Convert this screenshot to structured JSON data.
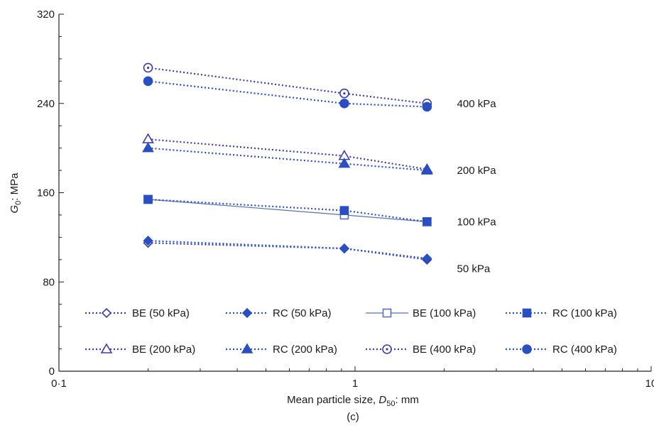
{
  "chart_data": {
    "type": "scatter",
    "xscale": "log",
    "xlim": [
      0.1,
      10
    ],
    "ylim": [
      0,
      320
    ],
    "xticks": [
      0.1,
      1,
      10
    ],
    "xtick_labels": [
      "0·1",
      "1",
      "10"
    ],
    "yticks": [
      0,
      80,
      160,
      240,
      320
    ],
    "ytick_labels": [
      "0",
      "80",
      "160",
      "240",
      "320"
    ],
    "xlabel": "Mean particle size, D50: mm",
    "xlabel_parts": {
      "main": "Mean particle size, ",
      "symbol": "D",
      "sub": "50",
      "unit": ": mm"
    },
    "ylabel_parts": {
      "symbol": "G",
      "sub": "0",
      "unit": ": MPa"
    },
    "panel_label": "(c)",
    "grid": false,
    "legend_position": "bottom",
    "colors": {
      "be": "#3d3da6",
      "rc": "#2a4fc2",
      "be100": "#5a6fb8"
    },
    "annotations": [
      {
        "text": "400 kPa",
        "x": 2.0,
        "y": 240
      },
      {
        "text": "200 kPa",
        "x": 2.0,
        "y": 180
      },
      {
        "text": "100 kPa",
        "x": 2.0,
        "y": 134
      },
      {
        "text": "50 kPa",
        "x": 2.0,
        "y": 92
      }
    ],
    "series": [
      {
        "name": "BE (50 kPa)",
        "marker": "diamond-open",
        "line": "dotted",
        "color": "#3d3da6",
        "x": [
          0.2,
          0.92,
          1.75
        ],
        "y": [
          115,
          110,
          100
        ]
      },
      {
        "name": "RC (50 kPa)",
        "marker": "diamond-filled",
        "line": "dotted",
        "color": "#2a4fc2",
        "x": [
          0.2,
          0.92,
          1.75
        ],
        "y": [
          117,
          110,
          101
        ]
      },
      {
        "name": "BE (100 kPa)",
        "marker": "square-open",
        "line": "solid",
        "color": "#5a6fb8",
        "x": [
          0.2,
          0.92,
          1.75
        ],
        "y": [
          154,
          140,
          134
        ]
      },
      {
        "name": "RC (100 kPa)",
        "marker": "square-filled",
        "line": "dotted",
        "color": "#2a4fc2",
        "x": [
          0.2,
          0.92,
          1.75
        ],
        "y": [
          154,
          144,
          134
        ]
      },
      {
        "name": "BE (200 kPa)",
        "marker": "triangle-open",
        "line": "dotted",
        "color": "#3d3da6",
        "x": [
          0.2,
          0.92,
          1.75
        ],
        "y": [
          208,
          193,
          181
        ]
      },
      {
        "name": "RC (200 kPa)",
        "marker": "triangle-filled",
        "line": "dotted",
        "color": "#2a4fc2",
        "x": [
          0.2,
          0.92,
          1.75
        ],
        "y": [
          200,
          186,
          180
        ]
      },
      {
        "name": "BE (400 kPa)",
        "marker": "circle-dot",
        "line": "dotted",
        "color": "#3d3da6",
        "x": [
          0.2,
          0.92,
          1.75
        ],
        "y": [
          272,
          249,
          240
        ]
      },
      {
        "name": "RC (400 kPa)",
        "marker": "circle-filled",
        "line": "dotted",
        "color": "#2a4fc2",
        "x": [
          0.2,
          0.92,
          1.75
        ],
        "y": [
          260,
          240,
          237
        ]
      }
    ]
  }
}
